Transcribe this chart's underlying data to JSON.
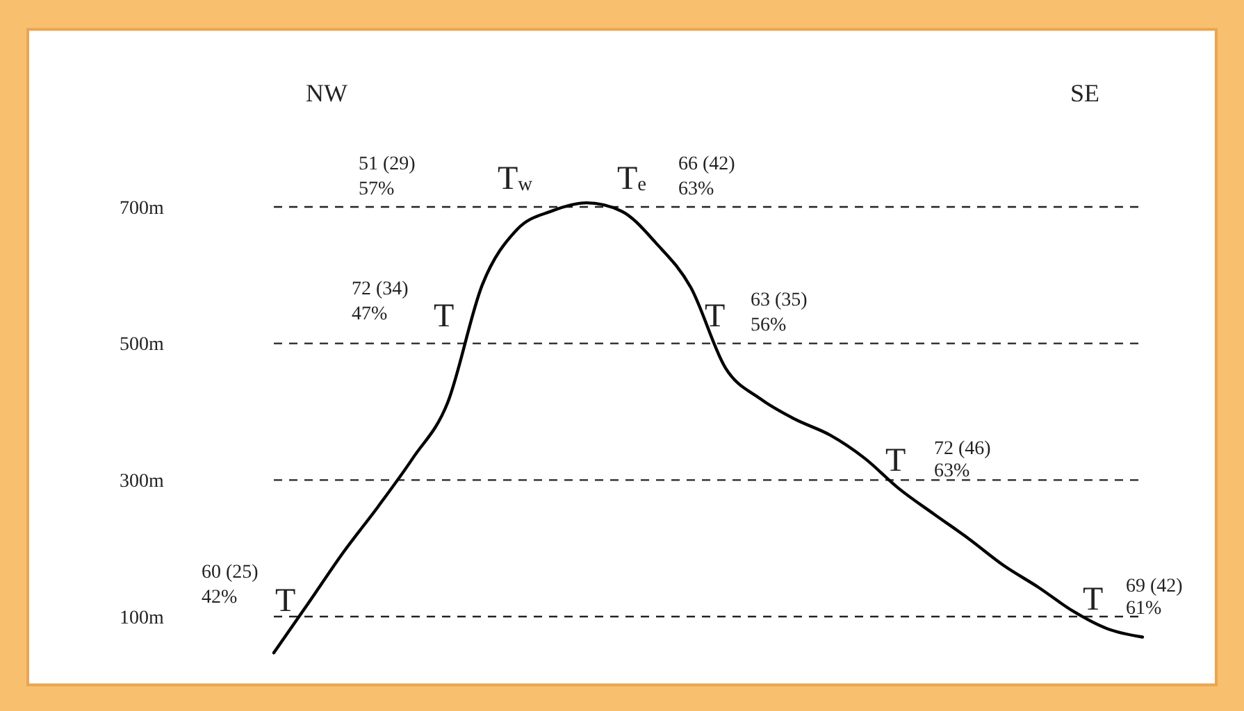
{
  "chart_data": {
    "type": "line",
    "categories": [
      null,
      null,
      null,
      null,
      null,
      null,
      null,
      null,
      null,
      null,
      null,
      null,
      null,
      null,
      null,
      null,
      null,
      null,
      null,
      null,
      null,
      null,
      null,
      null,
      null,
      null
    ],
    "series": [
      {
        "color": "#000000",
        "values": [
          47,
          120,
          194,
          261,
          332,
          413,
          586,
          667,
          694,
          706,
          694,
          647,
          582,
          464,
          419,
          389,
          366,
          332,
          287,
          250,
          214,
          175,
          143,
          108,
          82,
          70
        ]
      }
    ],
    "yticks": [
      {
        "value": 100,
        "label": "100m"
      },
      {
        "value": 300,
        "label": "300m"
      },
      {
        "value": 500,
        "label": "500m"
      },
      {
        "value": 700,
        "label": "700m"
      }
    ],
    "ylim": [
      0,
      960
    ],
    "grid": "y",
    "tick_labels": "y",
    "annotations": [
      "NW",
      "SE",
      "51 (29)",
      "57%",
      "T$_{w}$",
      "T$_{e}$",
      "66 (42)",
      "63%",
      "72 (34)",
      "47%",
      "T",
      "T",
      "63 (35)",
      "56%",
      "T",
      "72 (46)",
      "63%",
      "60 (25)",
      "42%",
      "T",
      "T",
      "69 (42)",
      "61%"
    ]
  }
}
